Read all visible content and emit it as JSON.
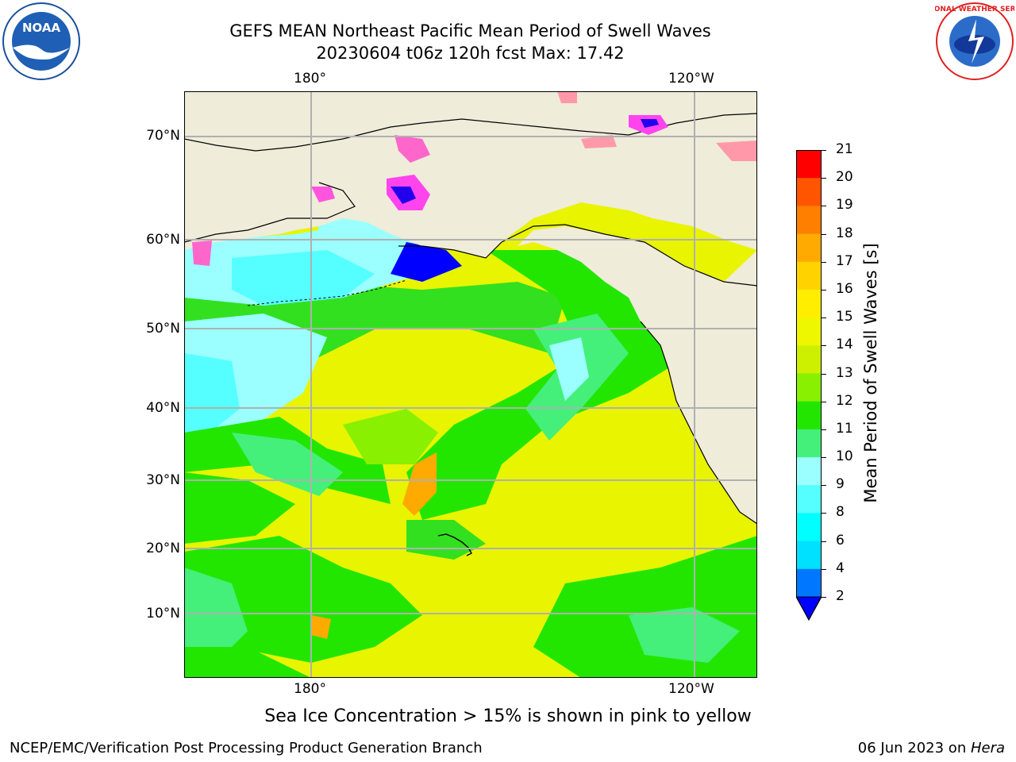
{
  "title": {
    "line1": "GEFS MEAN Northeast Pacific Mean Period of Swell Waves",
    "line2": "20230604 t06z 120h fcst   Max: 17.42"
  },
  "map": {
    "lon_labels_top": [
      "180°",
      "120°W"
    ],
    "lon_labels_bottom": [
      "180°",
      "120°W"
    ],
    "lat_labels": [
      "70°N",
      "60°N",
      "50°N",
      "40°N",
      "30°N",
      "20°N",
      "10°N"
    ],
    "colors": {
      "land": "#efecda",
      "grid": "#b0b0b0",
      "coast": "#000000"
    }
  },
  "colorbar": {
    "label": "Mean Period of Swell Waves [s]",
    "ticks": [
      "21",
      "20",
      "19",
      "18",
      "17",
      "16",
      "15",
      "14",
      "13",
      "12",
      "11",
      "10",
      "9",
      "8",
      "6",
      "4",
      "2"
    ],
    "colors_top_to_bottom": [
      "#ff0000",
      "#ff3300",
      "#ff5500",
      "#ff7f00",
      "#ffaa00",
      "#ffd200",
      "#ffee00",
      "#eef700",
      "#ccf000",
      "#88f000",
      "#22e600",
      "#44f07a",
      "#9bffff",
      "#55ffff",
      "#00ffff",
      "#00e0ff",
      "#0077ff"
    ],
    "extend_color": "#0000ff"
  },
  "notice": "Sea Ice Concentration > 15% is shown in pink to yellow",
  "footer": {
    "left": "NCEP/EMC/Verification Post Processing Product Generation Branch",
    "right_prefix": "06 Jun 2023 on ",
    "right_italic": "Hera"
  },
  "logos": {
    "noaa_text": "NOAA",
    "nws_text": "NATIONAL WEATHER SERVICE",
    "noaa_icon": "noaa-logo-icon",
    "nws_icon": "nws-logo-icon"
  }
}
